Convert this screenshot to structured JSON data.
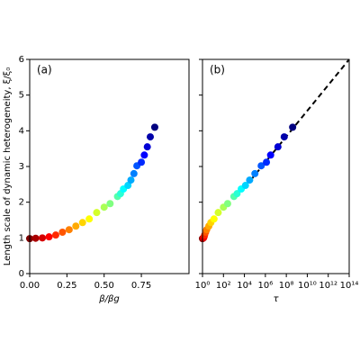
{
  "chart_data": [
    {
      "type": "scatter",
      "annotation": "(a)",
      "xlabel": "β/βg",
      "ylabel": "Length scale of dynamic heterogeneity, ξ/ξ₀",
      "colormap": "jet",
      "x": [
        0.0,
        0.04,
        0.085,
        0.13,
        0.175,
        0.22,
        0.265,
        0.31,
        0.355,
        0.4,
        0.45,
        0.5,
        0.54,
        0.59,
        0.61,
        0.63,
        0.66,
        0.68,
        0.7,
        0.72,
        0.75,
        0.77,
        0.79,
        0.81,
        0.84
      ],
      "values": [
        0.98,
        0.99,
        1.0,
        1.03,
        1.08,
        1.16,
        1.23,
        1.33,
        1.43,
        1.53,
        1.71,
        1.86,
        1.96,
        2.16,
        2.24,
        2.37,
        2.47,
        2.62,
        2.8,
        3.02,
        3.12,
        3.32,
        3.55,
        3.83,
        4.1
      ],
      "xlim": [
        0,
        1.07
      ],
      "ylim": [
        0,
        6
      ],
      "xticks": [
        {
          "value": 0,
          "label": "0.00"
        },
        {
          "value": 0.25,
          "label": "0.25"
        },
        {
          "value": 0.5,
          "label": "0.50"
        },
        {
          "value": 0.75,
          "label": "0.75"
        }
      ],
      "yticks": [
        0,
        1,
        2,
        3,
        4,
        5,
        6
      ]
    },
    {
      "type": "scatter",
      "annotation": "(b)",
      "xlabel": "τ",
      "xscale": "log",
      "colormap": "jet",
      "sharey": true,
      "x": [
        1,
        1.12,
        1.26,
        1.41,
        1.58,
        2,
        2.5,
        4,
        6.3,
        12.6,
        31.6,
        100,
        251,
        1000,
        2000,
        5000,
        12600,
        31600,
        100000,
        400000,
        1260000,
        3160000,
        15800000,
        63000000,
        400000000
      ],
      "values": [
        0.98,
        0.99,
        1.0,
        1.03,
        1.08,
        1.16,
        1.23,
        1.33,
        1.43,
        1.53,
        1.71,
        1.86,
        1.96,
        2.16,
        2.24,
        2.37,
        2.47,
        2.62,
        2.8,
        3.02,
        3.12,
        3.32,
        3.55,
        3.83,
        4.1
      ],
      "fit": {
        "x": [
          10000,
          100000000000000
        ],
        "values": [
          2.4,
          6.0
        ],
        "color": "#000000",
        "dashed": true
      },
      "xlim": [
        1,
        100000000000000
      ],
      "ylim": [
        0,
        6
      ],
      "xticks": [
        {
          "value": 1,
          "label": "10⁰"
        },
        {
          "value": 100,
          "label": "10²"
        },
        {
          "value": 10000,
          "label": "10⁴"
        },
        {
          "value": 1000000,
          "label": "10⁶"
        },
        {
          "value": 100000000,
          "label": "10⁸"
        },
        {
          "value": 10000000000,
          "label": "10¹⁰"
        },
        {
          "value": 1000000000000,
          "label": "10¹²"
        },
        {
          "value": 100000000000000,
          "label": "10¹⁴"
        }
      ],
      "yticks": [
        0,
        1,
        2,
        3,
        4,
        5,
        6
      ]
    }
  ]
}
